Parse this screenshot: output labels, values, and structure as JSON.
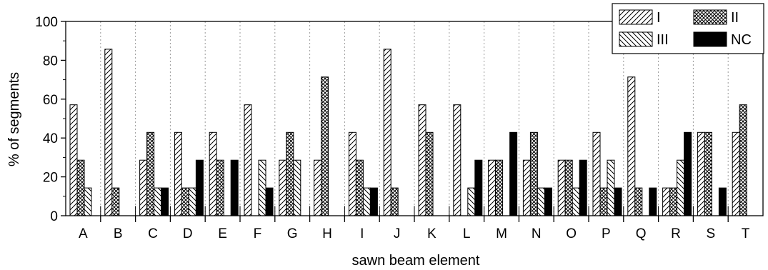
{
  "chart_data": {
    "type": "bar",
    "xlabel": "sawn beam element",
    "ylabel": "% of segments",
    "ylim": [
      0,
      100
    ],
    "yticks": [
      0,
      20,
      40,
      60,
      80,
      100
    ],
    "grid": "vertical dotted separators between categories",
    "legend_position": "top-right",
    "categories": [
      "A",
      "B",
      "C",
      "D",
      "E",
      "F",
      "G",
      "H",
      "I",
      "J",
      "K",
      "L",
      "M",
      "N",
      "O",
      "P",
      "Q",
      "R",
      "S",
      "T"
    ],
    "series": [
      {
        "name": "I",
        "pattern": "diagonal-forward",
        "values": [
          57.1,
          85.7,
          28.6,
          42.9,
          42.9,
          57.1,
          28.6,
          28.6,
          42.9,
          85.7,
          57.1,
          57.1,
          28.6,
          28.6,
          28.6,
          42.9,
          71.4,
          14.3,
          42.9,
          42.9
        ]
      },
      {
        "name": "II",
        "pattern": "crosshatch",
        "values": [
          28.6,
          14.3,
          42.9,
          14.3,
          28.6,
          0,
          42.9,
          71.4,
          28.6,
          14.3,
          42.9,
          0,
          28.6,
          42.9,
          28.6,
          14.3,
          14.3,
          14.3,
          42.9,
          57.1
        ]
      },
      {
        "name": "III",
        "pattern": "diagonal-back",
        "values": [
          14.3,
          0,
          14.3,
          14.3,
          0,
          28.6,
          28.6,
          0,
          14.3,
          0,
          0,
          14.3,
          0,
          14.3,
          14.3,
          28.6,
          0,
          28.6,
          0,
          0
        ]
      },
      {
        "name": "NC",
        "pattern": "solid-black",
        "values": [
          0,
          0,
          14.3,
          28.6,
          28.6,
          14.3,
          0,
          0,
          14.3,
          0,
          0,
          28.6,
          42.9,
          14.3,
          28.6,
          14.3,
          14.3,
          42.9,
          14.3,
          0
        ]
      }
    ]
  }
}
